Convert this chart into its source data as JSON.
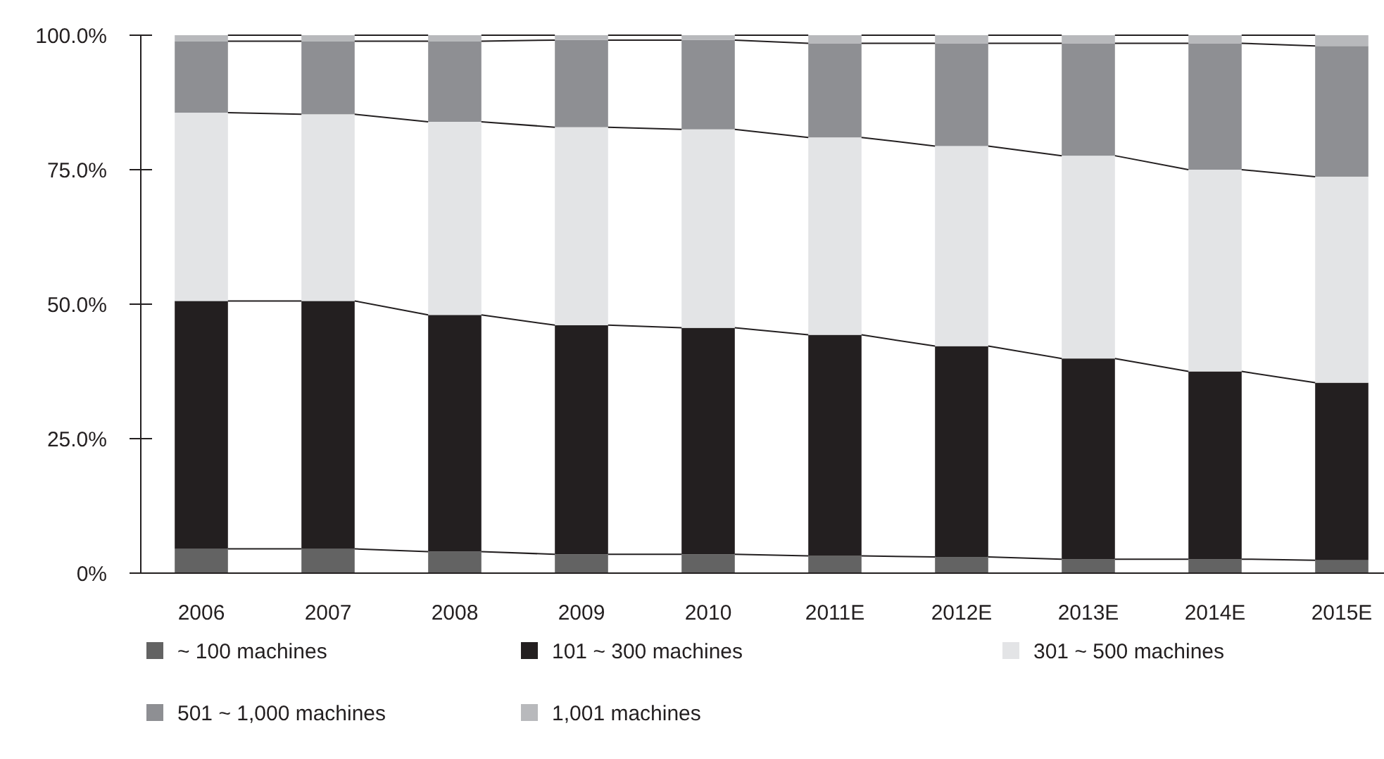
{
  "chart_data": {
    "type": "bar",
    "stacked": true,
    "categories": [
      "2006",
      "2007",
      "2008",
      "2009",
      "2010",
      "2011E",
      "2012E",
      "2013E",
      "2014E",
      "2015E"
    ],
    "series": [
      {
        "name": "~ 100 machines",
        "color": "#636363",
        "values": [
          4.5,
          4.5,
          4.0,
          3.5,
          3.5,
          3.2,
          3.0,
          2.6,
          2.6,
          2.4
        ]
      },
      {
        "name": "101 ~ 300 machines",
        "color": "#231f20",
        "values": [
          46.1,
          46.1,
          44.0,
          42.6,
          42.1,
          41.1,
          39.2,
          37.3,
          34.9,
          33.0
        ]
      },
      {
        "name": "301 ~ 500 machines",
        "color": "#e3e4e6",
        "values": [
          35.0,
          34.7,
          35.9,
          36.8,
          36.9,
          36.7,
          37.2,
          37.7,
          37.5,
          38.3
        ]
      },
      {
        "name": "501 ~ 1,000 machines",
        "color": "#8e8f93",
        "values": [
          13.3,
          13.6,
          15.0,
          16.2,
          16.6,
          17.5,
          19.1,
          20.9,
          23.5,
          24.3
        ]
      },
      {
        "name": "1,001 machines",
        "color": "#b8b9bc",
        "values": [
          1.1,
          1.1,
          1.1,
          0.9,
          0.9,
          1.5,
          1.5,
          1.5,
          1.5,
          2.0
        ]
      }
    ],
    "ylim": [
      0,
      100
    ],
    "yticks": [
      {
        "value": 0,
        "label": "0%"
      },
      {
        "value": 25,
        "label": "25.0%"
      },
      {
        "value": 50,
        "label": "50.0%"
      },
      {
        "value": 75,
        "label": "75.0%"
      },
      {
        "value": 100,
        "label": "100.0%"
      }
    ],
    "grid": false,
    "legend": "bottom"
  }
}
